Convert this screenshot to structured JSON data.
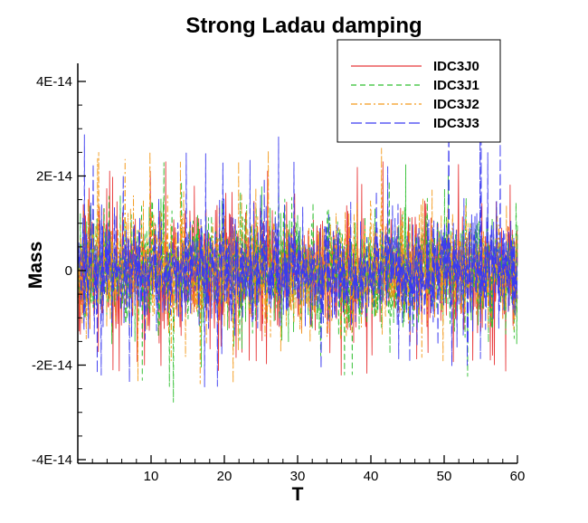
{
  "chart_data": {
    "type": "line",
    "title": "Strong Ladau damping",
    "xlabel": "T",
    "ylabel": "Mass",
    "xlim": [
      0,
      60
    ],
    "ylim": [
      -4e-14,
      4e-14
    ],
    "x_ticks": [
      10,
      20,
      30,
      40,
      50,
      60
    ],
    "x_tick_labels": [
      "10",
      "20",
      "30",
      "40",
      "50",
      "60"
    ],
    "y_ticks": [
      4e-14,
      2e-14,
      0,
      -2e-14,
      -4e-14
    ],
    "y_tick_labels": [
      "4E-14",
      "2E-14",
      "0",
      "-2E-14",
      "-4E-14"
    ],
    "grid": false,
    "legend_position": "top-right",
    "series": [
      {
        "name": "IDC3J0",
        "color": "#e8393a",
        "dash": "solid",
        "mean": 0,
        "noise_std": 6e-15,
        "peak_max": 2.3e-14,
        "peak_min": -2.3e-14
      },
      {
        "name": "IDC3J1",
        "color": "#2fbf2f",
        "dash": "dashed",
        "mean": 0,
        "noise_std": 6e-15,
        "peak_max": 2.3e-14,
        "peak_min": -2.9e-14
      },
      {
        "name": "IDC3J2",
        "color": "#f39a1c",
        "dash": "dash-dot",
        "mean": 0,
        "noise_std": 6e-15,
        "peak_max": 2.6e-14,
        "peak_min": -2.4e-14
      },
      {
        "name": "IDC3J3",
        "color": "#3a3af0",
        "dash": "long-dash",
        "mean": 0,
        "noise_std": 6e-15,
        "peak_max": 2.9e-14,
        "peak_min": -2.5e-14
      }
    ]
  }
}
